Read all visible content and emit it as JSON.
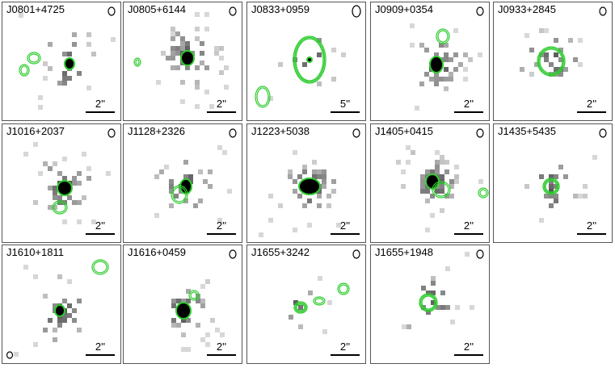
{
  "panels": [
    {
      "label": "J0801+4725",
      "scale": "2''"
    },
    {
      "label": "J0805+6144",
      "scale": "2''"
    },
    {
      "label": "J0833+0959",
      "scale": "5''"
    },
    {
      "label": "J0909+0354",
      "scale": "2''"
    },
    {
      "label": "J0933+2845",
      "scale": "2''"
    },
    {
      "label": "J1016+2037",
      "scale": "2''"
    },
    {
      "label": "J1128+2326",
      "scale": "2''"
    },
    {
      "label": "J1223+5038",
      "scale": "2''"
    },
    {
      "label": "J1405+0415",
      "scale": "2''"
    },
    {
      "label": "J1435+5435",
      "scale": "2''"
    },
    {
      "label": "J1610+1811",
      "scale": "2''"
    },
    {
      "label": "J1616+0459",
      "scale": "2''"
    },
    {
      "label": "J1655+3242",
      "scale": "2''"
    },
    {
      "label": "J1655+1948",
      "scale": "2''"
    }
  ]
}
